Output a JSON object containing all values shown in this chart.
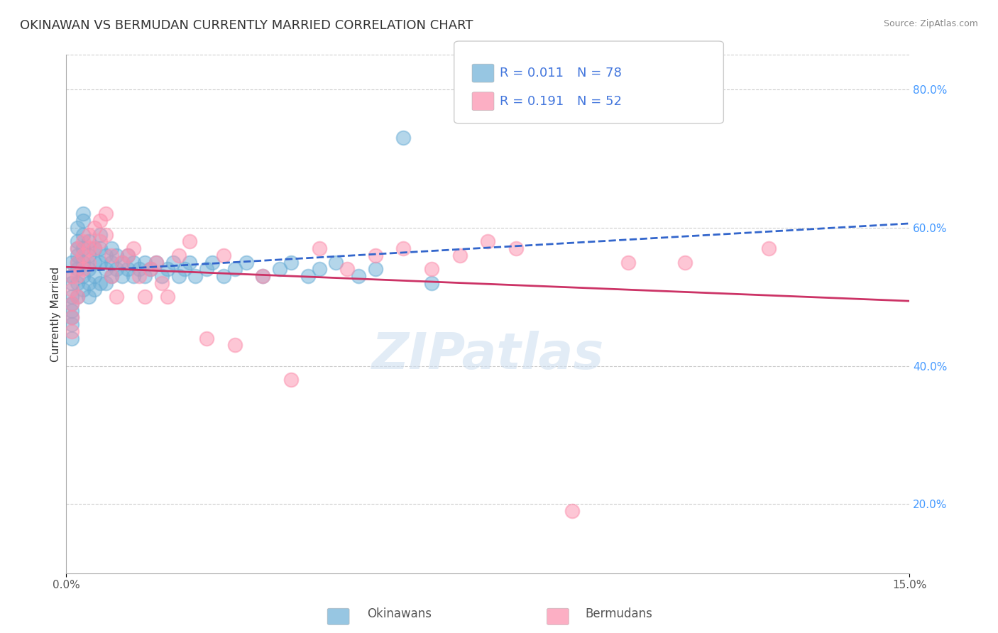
{
  "title": "OKINAWAN VS BERMUDAN CURRENTLY MARRIED CORRELATION CHART",
  "source_text": "Source: ZipAtlas.com",
  "xlabel": "",
  "ylabel": "Currently Married",
  "xlim": [
    0.0,
    0.15
  ],
  "ylim": [
    0.1,
    0.85
  ],
  "xticks": [
    0.0,
    0.15
  ],
  "xticklabels": [
    "0.0%",
    "15.0%"
  ],
  "yticks_left": [],
  "yticks_right": [
    0.2,
    0.4,
    0.6,
    0.8
  ],
  "ytick_right_labels": [
    "20.0%",
    "40.0%",
    "60.0%",
    "80.0%"
  ],
  "legend_r1": "R = 0.011",
  "legend_n1": "N = 78",
  "legend_r2": "R = 0.191",
  "legend_n2": "N = 52",
  "series1_label": "Okinawans",
  "series2_label": "Bermudans",
  "series1_color": "#6baed6",
  "series2_color": "#fc8eac",
  "trend1_color": "#3366cc",
  "trend2_color": "#cc3366",
  "watermark": "ZIPatlas",
  "background_color": "#ffffff",
  "grid_color": "#cccccc",
  "title_fontsize": 13,
  "okinawan_x": [
    0.001,
    0.001,
    0.001,
    0.001,
    0.001,
    0.001,
    0.001,
    0.001,
    0.001,
    0.002,
    0.002,
    0.002,
    0.002,
    0.002,
    0.002,
    0.002,
    0.002,
    0.003,
    0.003,
    0.003,
    0.003,
    0.003,
    0.003,
    0.003,
    0.004,
    0.004,
    0.004,
    0.004,
    0.004,
    0.005,
    0.005,
    0.005,
    0.005,
    0.006,
    0.006,
    0.006,
    0.006,
    0.007,
    0.007,
    0.007,
    0.008,
    0.008,
    0.008,
    0.009,
    0.009,
    0.01,
    0.01,
    0.011,
    0.011,
    0.012,
    0.012,
    0.013,
    0.014,
    0.014,
    0.015,
    0.016,
    0.017,
    0.018,
    0.019,
    0.02,
    0.021,
    0.022,
    0.023,
    0.025,
    0.026,
    0.028,
    0.03,
    0.032,
    0.035,
    0.038,
    0.04,
    0.043,
    0.045,
    0.048,
    0.052,
    0.055,
    0.06,
    0.065
  ],
  "okinawan_y": [
    0.55,
    0.53,
    0.52,
    0.5,
    0.49,
    0.48,
    0.47,
    0.46,
    0.44,
    0.6,
    0.58,
    0.57,
    0.56,
    0.55,
    0.54,
    0.52,
    0.5,
    0.62,
    0.61,
    0.59,
    0.57,
    0.55,
    0.53,
    0.51,
    0.58,
    0.56,
    0.54,
    0.52,
    0.5,
    0.57,
    0.55,
    0.53,
    0.51,
    0.59,
    0.57,
    0.55,
    0.52,
    0.56,
    0.54,
    0.52,
    0.57,
    0.55,
    0.53,
    0.56,
    0.54,
    0.55,
    0.53,
    0.56,
    0.54,
    0.55,
    0.53,
    0.54,
    0.55,
    0.53,
    0.54,
    0.55,
    0.53,
    0.54,
    0.55,
    0.53,
    0.54,
    0.55,
    0.53,
    0.54,
    0.55,
    0.53,
    0.54,
    0.55,
    0.53,
    0.54,
    0.55,
    0.53,
    0.54,
    0.55,
    0.53,
    0.54,
    0.73,
    0.52
  ],
  "bermudan_x": [
    0.001,
    0.001,
    0.001,
    0.001,
    0.001,
    0.002,
    0.002,
    0.002,
    0.002,
    0.003,
    0.003,
    0.003,
    0.004,
    0.004,
    0.004,
    0.005,
    0.005,
    0.006,
    0.006,
    0.007,
    0.007,
    0.008,
    0.008,
    0.009,
    0.01,
    0.011,
    0.012,
    0.013,
    0.014,
    0.015,
    0.016,
    0.017,
    0.018,
    0.02,
    0.022,
    0.025,
    0.028,
    0.03,
    0.035,
    0.04,
    0.045,
    0.05,
    0.055,
    0.06,
    0.065,
    0.07,
    0.075,
    0.08,
    0.09,
    0.1,
    0.11,
    0.125
  ],
  "bermudan_y": [
    0.53,
    0.51,
    0.49,
    0.47,
    0.45,
    0.57,
    0.55,
    0.53,
    0.5,
    0.58,
    0.56,
    0.54,
    0.59,
    0.57,
    0.55,
    0.6,
    0.57,
    0.61,
    0.58,
    0.62,
    0.59,
    0.56,
    0.53,
    0.5,
    0.55,
    0.56,
    0.57,
    0.53,
    0.5,
    0.54,
    0.55,
    0.52,
    0.5,
    0.56,
    0.58,
    0.44,
    0.56,
    0.43,
    0.53,
    0.38,
    0.57,
    0.54,
    0.56,
    0.57,
    0.54,
    0.56,
    0.58,
    0.57,
    0.19,
    0.55,
    0.55,
    0.57
  ]
}
